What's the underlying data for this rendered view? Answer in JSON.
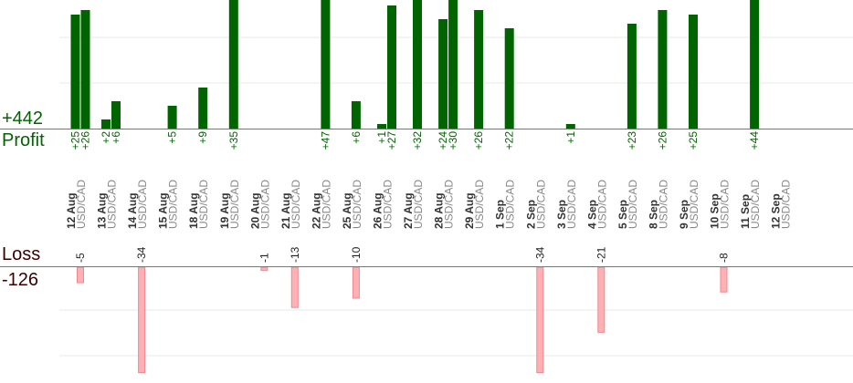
{
  "summary": {
    "profit_total": "+442",
    "profit_label": "Profit",
    "loss_label": "Loss",
    "loss_total": "-126"
  },
  "colors": {
    "profit_bar": "#006400",
    "profit_text": "#006400",
    "loss_bar": "#ffb0b5",
    "loss_bar_border": "#f08890",
    "loss_text": "#3a0000",
    "axis": "#777777",
    "grid": "#e8e8e8"
  },
  "chart_data": {
    "type": "bar",
    "categories": [
      {
        "date": "12 Aug",
        "pair": "USD/CAD"
      },
      {
        "date": "13 Aug",
        "pair": "USD/CAD"
      },
      {
        "date": "14 Aug",
        "pair": "USD/CAD"
      },
      {
        "date": "15 Aug",
        "pair": "USD/CAD"
      },
      {
        "date": "18 Aug",
        "pair": "USD/CAD"
      },
      {
        "date": "19 Aug",
        "pair": "USD/CAD"
      },
      {
        "date": "20 Aug",
        "pair": "USD/CAD"
      },
      {
        "date": "21 Aug",
        "pair": "USD/CAD"
      },
      {
        "date": "22 Aug",
        "pair": "USD/CAD"
      },
      {
        "date": "25 Aug",
        "pair": "USD/CAD"
      },
      {
        "date": "26 Aug",
        "pair": "USD/CAD"
      },
      {
        "date": "27 Aug",
        "pair": "USD/CAD"
      },
      {
        "date": "28 Aug",
        "pair": "USD/CAD"
      },
      {
        "date": "29 Aug",
        "pair": "USD/CAD"
      },
      {
        "date": "1 Sep",
        "pair": "USD/CAD"
      },
      {
        "date": "2 Sep",
        "pair": "USD/CAD"
      },
      {
        "date": "3 Sep",
        "pair": "USD/CAD"
      },
      {
        "date": "4 Sep",
        "pair": "USD/CAD"
      },
      {
        "date": "5 Sep",
        "pair": "USD/CAD"
      },
      {
        "date": "8 Sep",
        "pair": "USD/CAD"
      },
      {
        "date": "9 Sep",
        "pair": "USD/CAD"
      },
      {
        "date": "10 Sep",
        "pair": "USD/CAD"
      },
      {
        "date": "11 Sep",
        "pair": "USD/CAD"
      },
      {
        "date": "12 Sep",
        "pair": "USD/CAD"
      }
    ],
    "profits": [
      {
        "day": 0,
        "value": 25,
        "label": "+25"
      },
      {
        "day": 0,
        "value": 26,
        "label": "+26"
      },
      {
        "day": 1,
        "value": 2,
        "label": "+2"
      },
      {
        "day": 1,
        "value": 6,
        "label": "+6"
      },
      {
        "day": 3,
        "value": 5,
        "label": "+5"
      },
      {
        "day": 4,
        "value": 9,
        "label": "+9"
      },
      {
        "day": 5,
        "value": 35,
        "label": "+35"
      },
      {
        "day": 8,
        "value": 47,
        "label": "+47"
      },
      {
        "day": 9,
        "value": 6,
        "label": "+6"
      },
      {
        "day": 10,
        "value": 1,
        "label": "+1"
      },
      {
        "day": 10,
        "value": 27,
        "label": "+27"
      },
      {
        "day": 11,
        "value": 32,
        "label": "+32"
      },
      {
        "day": 12,
        "value": 24,
        "label": "+24"
      },
      {
        "day": 12,
        "value": 30,
        "label": "+30"
      },
      {
        "day": 13,
        "value": 26,
        "label": "+26"
      },
      {
        "day": 14,
        "value": 22,
        "label": "+22"
      },
      {
        "day": 16,
        "value": 1,
        "label": "+1"
      },
      {
        "day": 18,
        "value": 23,
        "label": "+23"
      },
      {
        "day": 19,
        "value": 26,
        "label": "+26"
      },
      {
        "day": 20,
        "value": 25,
        "label": "+25"
      },
      {
        "day": 22,
        "value": 44,
        "label": "+44"
      }
    ],
    "losses": [
      {
        "day": 0,
        "value": -5,
        "label": "-5"
      },
      {
        "day": 2,
        "value": -34,
        "label": "-34"
      },
      {
        "day": 6,
        "value": -1,
        "label": "-1"
      },
      {
        "day": 7,
        "value": -13,
        "label": "-13"
      },
      {
        "day": 9,
        "value": -10,
        "label": "-10"
      },
      {
        "day": 15,
        "value": -34,
        "label": "-34"
      },
      {
        "day": 17,
        "value": -21,
        "label": "-21"
      },
      {
        "day": 21,
        "value": -8,
        "label": "-8"
      }
    ]
  }
}
